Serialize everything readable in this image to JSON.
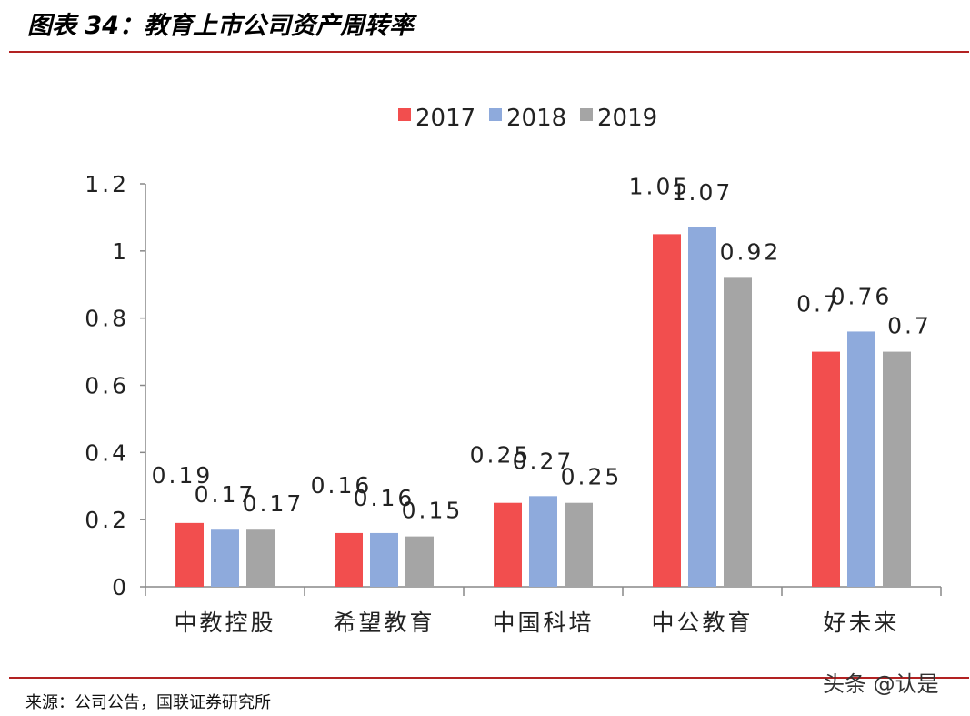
{
  "figure": {
    "title": "图表 34：教育上市公司资产周转率",
    "source": "来源：公司公告，国联证券研究所",
    "watermark": "头条 @认是"
  },
  "chart_data": {
    "type": "bar",
    "title": "",
    "xlabel": "",
    "ylabel": "",
    "categories": [
      "中教控股",
      "希望教育",
      "中国科培",
      "中公教育",
      "好未来"
    ],
    "series": [
      {
        "name": "2017",
        "color": "#f24e4e",
        "values": [
          0.19,
          0.16,
          0.25,
          1.05,
          0.7
        ]
      },
      {
        "name": "2018",
        "color": "#8eaadc",
        "values": [
          0.17,
          0.16,
          0.27,
          1.07,
          0.76
        ]
      },
      {
        "name": "2019",
        "color": "#a5a5a5",
        "values": [
          0.17,
          0.15,
          0.25,
          0.92,
          0.7
        ]
      }
    ],
    "data_labels": [
      [
        "0.19",
        "0.16",
        "0.25",
        "1.05",
        "0.7"
      ],
      [
        "0.17",
        "0.16",
        "0.27",
        "1.07",
        "0.76"
      ],
      [
        "0.17",
        "0.15",
        "0.25",
        "0.92",
        "0.7"
      ]
    ],
    "y_ticks": [
      "0",
      "0.2",
      "0.4",
      "0.6",
      "0.8",
      "1",
      "1.2"
    ],
    "ylim": [
      0,
      1.2
    ],
    "grid": false,
    "legend_position": "top-center"
  }
}
